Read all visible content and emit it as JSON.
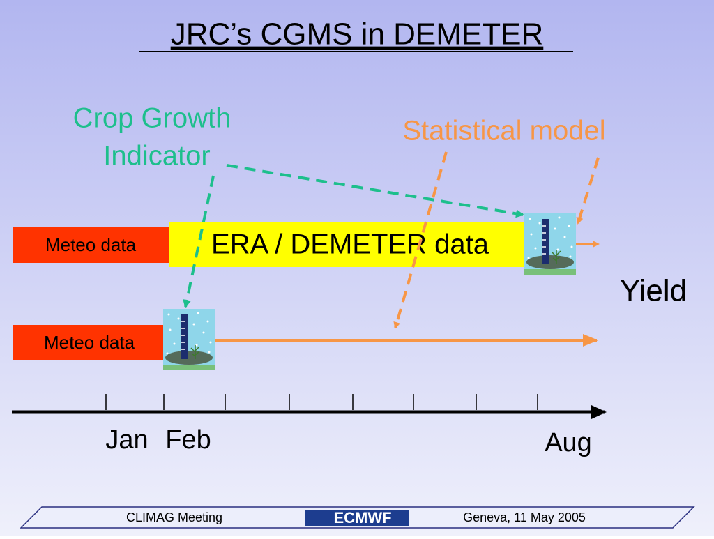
{
  "title": "JRC’s CGMS in DEMETER",
  "labels": {
    "crop_growth": [
      "Crop Growth",
      "Indicator"
    ],
    "statistical_model": "Statistical model",
    "era_demeter": "ERA / DEMETER data",
    "meteo_top": "Meteo data",
    "meteo_bottom": "Meteo data",
    "yield": "Yield"
  },
  "timeline": {
    "jan": "Jan",
    "feb": "Feb",
    "aug": "Aug"
  },
  "footer": {
    "left": "CLIMAG Meeting",
    "logo": "ECMWF",
    "right": "Geneva, 11 May 2005"
  }
}
